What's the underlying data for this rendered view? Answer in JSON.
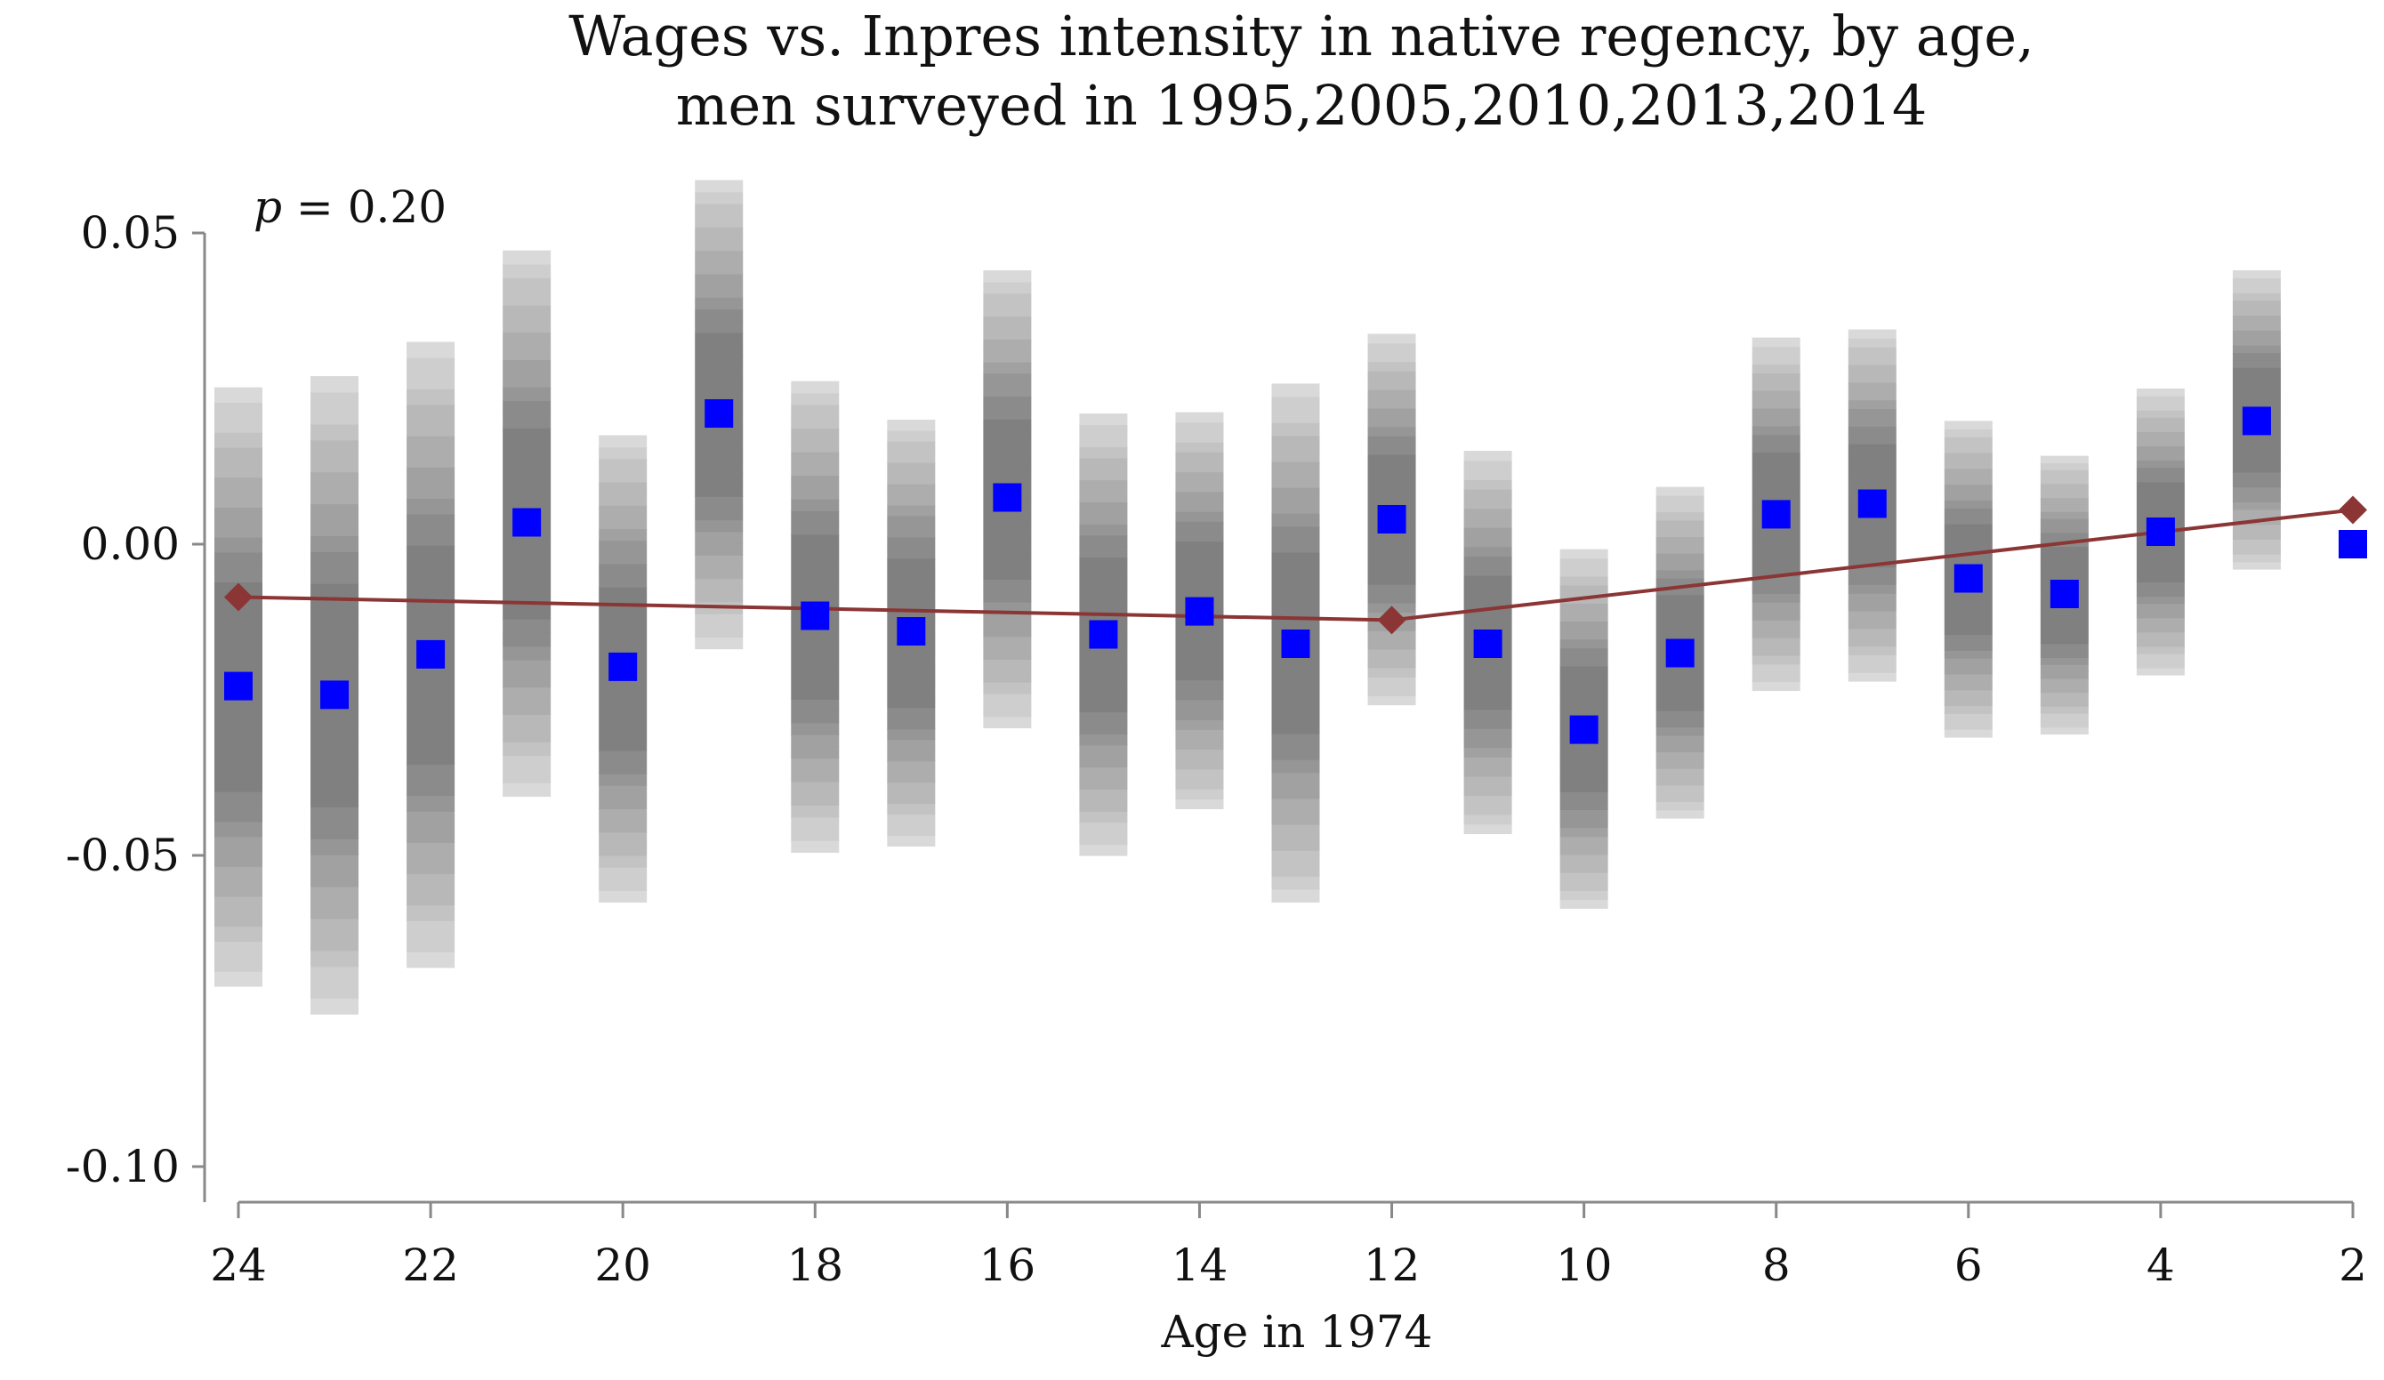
{
  "chart_data": {
    "type": "scatter",
    "title": [
      "Wages vs. Inpres intensity in native regency, by age,",
      "men surveyed in 1995,2005,2010,2013,2014"
    ],
    "xlabel": "Age in 1974",
    "ylabel": "",
    "annotation": {
      "p_label": "p",
      "p_value": " = 0.20"
    },
    "xlim": [
      24,
      2
    ],
    "ylim": [
      -0.1,
      0.05
    ],
    "x_ticks": [
      24,
      22,
      20,
      18,
      16,
      14,
      12,
      10,
      8,
      6,
      4,
      2
    ],
    "y_ticks": [
      0.05,
      0.0,
      -0.05,
      -0.1
    ],
    "y_tick_labels": [
      "0.05",
      "0.00",
      "-0.05",
      "-0.10"
    ],
    "grid": false,
    "colors": {
      "point": "#0000ff",
      "fit_line": "#8b3535",
      "ci_dark": "#808080",
      "ci_light": "#d9d9d9",
      "axis": "#888888"
    },
    "series": [
      {
        "marker": "square",
        "x": [
          24,
          23,
          22,
          21,
          20,
          19,
          18,
          17,
          16,
          15,
          14,
          13,
          12,
          11,
          10,
          9,
          8,
          7,
          6,
          5,
          4,
          3,
          2
        ],
        "values": [
          -0.0228,
          -0.0242,
          -0.0177,
          0.0035,
          -0.0197,
          0.021,
          -0.0115,
          -0.014,
          0.0075,
          -0.0145,
          -0.0108,
          -0.016,
          0.004,
          -0.016,
          -0.0298,
          -0.0175,
          0.0048,
          0.0065,
          -0.0055,
          -0.008,
          0.002,
          0.0198,
          0.0
        ],
        "ci_low": [
          -0.071,
          -0.0755,
          -0.068,
          -0.0405,
          -0.0575,
          -0.0168,
          -0.0495,
          -0.0485,
          -0.0295,
          -0.05,
          -0.0425,
          -0.0575,
          -0.0258,
          -0.0465,
          -0.0585,
          -0.044,
          -0.0235,
          -0.022,
          -0.031,
          -0.0305,
          -0.021,
          -0.004,
          null
        ],
        "ci_high": [
          0.0252,
          0.027,
          0.0325,
          0.0472,
          0.0175,
          0.0585,
          0.0262,
          0.02,
          0.044,
          0.021,
          0.0212,
          0.0258,
          0.0338,
          0.015,
          -0.0008,
          0.0092,
          0.0332,
          0.0345,
          0.0198,
          0.0142,
          0.025,
          0.044,
          null
        ]
      },
      {
        "marker": "diamond-line",
        "x": [
          24,
          12,
          2
        ],
        "values": [
          -0.0085,
          -0.0122,
          0.0055
        ]
      }
    ]
  }
}
